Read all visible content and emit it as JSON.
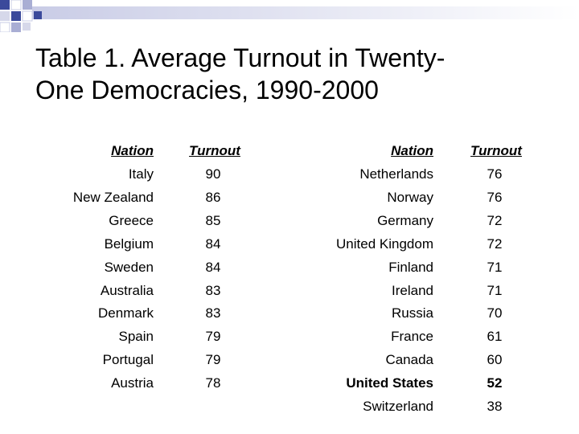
{
  "slide": {
    "title_line1": "Table 1. Average Turnout in Twenty-",
    "title_line2": "One Democracies, 1990-2000"
  },
  "colors": {
    "accent": "#3b4a9b",
    "light": "#d6d8ea",
    "mid": "#a9aed4"
  },
  "table": {
    "headers": {
      "nation": "Nation",
      "turnout": "Turnout"
    },
    "left": [
      {
        "nation": "Italy",
        "turnout": "90"
      },
      {
        "nation": "New Zealand",
        "turnout": "86"
      },
      {
        "nation": "Greece",
        "turnout": "85"
      },
      {
        "nation": "Belgium",
        "turnout": "84"
      },
      {
        "nation": "Sweden",
        "turnout": "84"
      },
      {
        "nation": "Australia",
        "turnout": "83"
      },
      {
        "nation": "Denmark",
        "turnout": "83"
      },
      {
        "nation": "Spain",
        "turnout": "79"
      },
      {
        "nation": "Portugal",
        "turnout": "79"
      },
      {
        "nation": "Austria",
        "turnout": "78"
      }
    ],
    "right": [
      {
        "nation": "Netherlands",
        "turnout": "76"
      },
      {
        "nation": "Norway",
        "turnout": "76"
      },
      {
        "nation": "Germany",
        "turnout": "72"
      },
      {
        "nation": "United Kingdom",
        "turnout": "72"
      },
      {
        "nation": "Finland",
        "turnout": "71"
      },
      {
        "nation": "Ireland",
        "turnout": "71"
      },
      {
        "nation": "Russia",
        "turnout": "70"
      },
      {
        "nation": "France",
        "turnout": "61"
      },
      {
        "nation": "Canada",
        "turnout": "60"
      },
      {
        "nation": "United States",
        "turnout": "52",
        "bold": true
      },
      {
        "nation": "Switzerland",
        "turnout": "38"
      }
    ]
  }
}
